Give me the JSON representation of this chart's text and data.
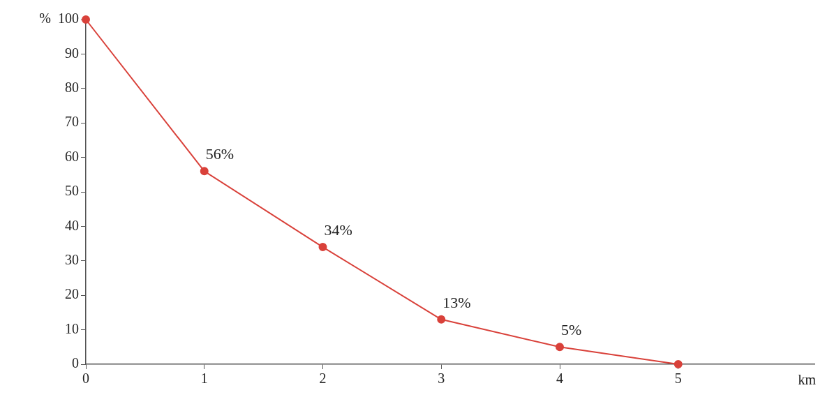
{
  "chart_data": {
    "type": "line",
    "xlabel": "km",
    "ylabel": "%",
    "x": [
      0,
      1,
      2,
      3,
      4,
      5
    ],
    "series": [
      {
        "color": "#d9413a",
        "values": [
          100,
          56,
          34,
          13,
          5,
          0
        ],
        "value_labels": [
          null,
          "56%",
          "34%",
          "13%",
          "5%",
          null
        ]
      }
    ],
    "xlim": [
      0,
      6.15
    ],
    "xticks": [
      0,
      1,
      2,
      3,
      4,
      5
    ],
    "ylim": [
      0,
      100
    ],
    "yticks": [
      0,
      10,
      20,
      30,
      40,
      50,
      60,
      70,
      80,
      90,
      100
    ],
    "grid": false,
    "legend": false,
    "marker": "circle",
    "line_style": "solid"
  }
}
